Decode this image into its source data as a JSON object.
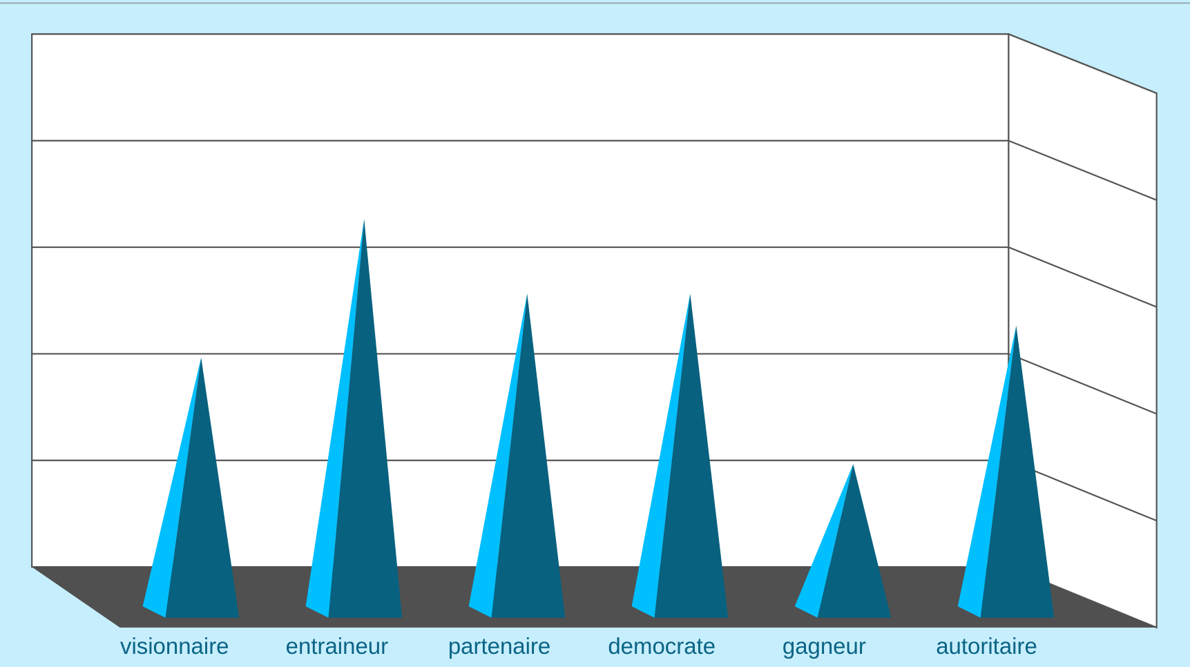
{
  "chart_data": {
    "type": "pyramid3d",
    "categories": [
      "visionnaire",
      "entraineur",
      "partenaire",
      "democrate",
      "gagneur",
      "autoritaire"
    ],
    "values": [
      2.2,
      3.5,
      2.8,
      2.8,
      1.2,
      2.5
    ],
    "ylim": [
      0,
      5
    ],
    "yticks": [
      0,
      1,
      2,
      3,
      4,
      5
    ],
    "grid": true,
    "color": "#08617f",
    "light_color": "#00bfff",
    "floor_color": "#505050"
  }
}
